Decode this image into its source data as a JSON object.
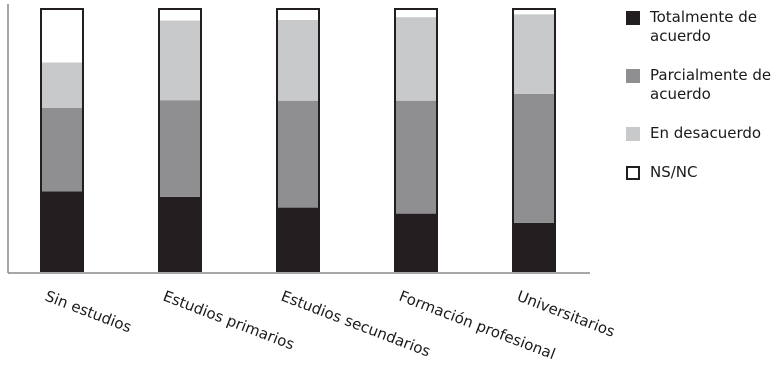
{
  "chart_data": {
    "type": "bar",
    "stacked": true,
    "categories": [
      "Sin estudios",
      "Estudios primarios",
      "Estudios secundarios",
      "Formación profesional",
      "Universitarios"
    ],
    "ylim": [
      0,
      100
    ],
    "grid": false,
    "legend_position": "right",
    "series": [
      {
        "name": "Totalmente de acuerdo",
        "color": "#231f20",
        "values": [
          30.4,
          28.3,
          24.2,
          21.9,
          18.4
        ]
      },
      {
        "name": "Parcialmente de acuerdo",
        "color": "#8f8f91",
        "values": [
          31.9,
          36.9,
          40.8,
          43.1,
          49.2
        ]
      },
      {
        "name": "En desacuerdo",
        "color": "#c8c9cb",
        "values": [
          17.3,
          30.4,
          30.8,
          31.9,
          30.4
        ]
      },
      {
        "name": "NS/NC",
        "color": "#ffffff",
        "values": [
          20.4,
          4.4,
          4.2,
          3.1,
          2.0
        ]
      }
    ]
  }
}
